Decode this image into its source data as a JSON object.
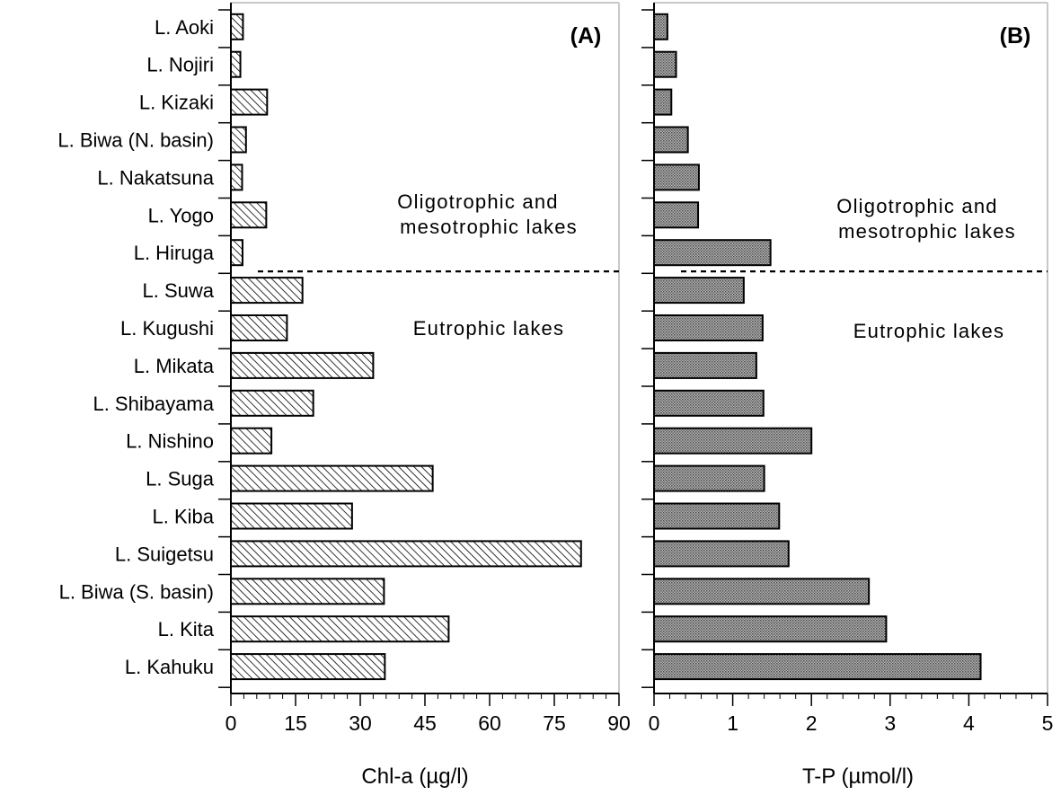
{
  "lakes": [
    "L. Aoki",
    "L. Nojiri",
    "L. Kizaki",
    "L. Biwa (N. basin)",
    "L. Nakatsuna",
    "L. Yogo",
    "L. Hiruga",
    "L. Suwa",
    "L. Kugushi",
    "L. Mikata",
    "L. Shibayama",
    "L. Nishino",
    "L. Suga",
    "L. Kiba",
    "L. Suigetsu",
    "L. Biwa (S. basin)",
    "L. Kita",
    "L. Kahuku"
  ],
  "chart_data": [
    {
      "type": "bar",
      "orientation": "horizontal",
      "panel_label": "(A)",
      "xlabel": "Chl-a (µg/l)",
      "xlim": [
        0,
        90
      ],
      "xticks": [
        0,
        15,
        30,
        45,
        60,
        75,
        90
      ],
      "xtick_labels": [
        "0",
        "15",
        "30",
        "45",
        "60",
        "75",
        "90"
      ],
      "categories": [
        "L. Aoki",
        "L. Nojiri",
        "L. Kizaki",
        "L. Biwa (N. basin)",
        "L. Nakatsuna",
        "L. Yogo",
        "L. Hiruga",
        "L. Suwa",
        "L. Kugushi",
        "L. Mikata",
        "L. Shibayama",
        "L. Nishino",
        "L. Suga",
        "L. Kiba",
        "L. Suigetsu",
        "L. Biwa (S. basin)",
        "L. Kita",
        "L. Kahuku"
      ],
      "values": [
        2.8,
        2.2,
        8.4,
        3.5,
        2.6,
        8.2,
        2.7,
        16.6,
        13,
        33,
        19.1,
        9.4,
        46.8,
        28.1,
        81.2,
        35.5,
        50.5,
        35.7
      ],
      "fill_pattern": "diagonal-hatch",
      "annotations": [
        {
          "text": "Oligotrophic and",
          "position": "upper-right"
        },
        {
          "text": "mesotrophic lakes",
          "position": "upper-right"
        },
        {
          "text": "Eutrophic lakes",
          "position": "right"
        }
      ],
      "separator": {
        "style": "dashed",
        "between": [
          "L. Hiruga",
          "L. Suwa"
        ]
      }
    },
    {
      "type": "bar",
      "orientation": "horizontal",
      "panel_label": "(B)",
      "xlabel": "T-P (µmol/l)",
      "xlim": [
        0,
        5
      ],
      "xticks": [
        0,
        1,
        2,
        3,
        4,
        5
      ],
      "xtick_labels": [
        "0",
        "1",
        "2",
        "3",
        "4",
        "5"
      ],
      "categories": [
        "L. Aoki",
        "L. Nojiri",
        "L. Kizaki",
        "L. Biwa (N. basin)",
        "L. Nakatsuna",
        "L. Yogo",
        "L. Hiruga",
        "L. Suwa",
        "L. Kugushi",
        "L. Mikata",
        "L. Shibayama",
        "L. Nishino",
        "L. Suga",
        "L. Kiba",
        "L. Suigetsu",
        "L. Biwa (S. basin)",
        "L. Kita",
        "L. Kahuku"
      ],
      "values": [
        0.17,
        0.28,
        0.22,
        0.43,
        0.57,
        0.56,
        1.48,
        1.14,
        1.38,
        1.3,
        1.39,
        2,
        1.4,
        1.59,
        1.71,
        2.73,
        2.95,
        4.15
      ],
      "fill_pattern": "crosshatch",
      "annotations": [
        {
          "text": "Oligotrophic and",
          "position": "upper-right"
        },
        {
          "text": "mesotrophic lakes",
          "position": "upper-right"
        },
        {
          "text": "Eutrophic lakes",
          "position": "right"
        }
      ],
      "separator": {
        "style": "dashed",
        "between": [
          "L. Hiruga",
          "L. Suwa"
        ]
      }
    }
  ]
}
